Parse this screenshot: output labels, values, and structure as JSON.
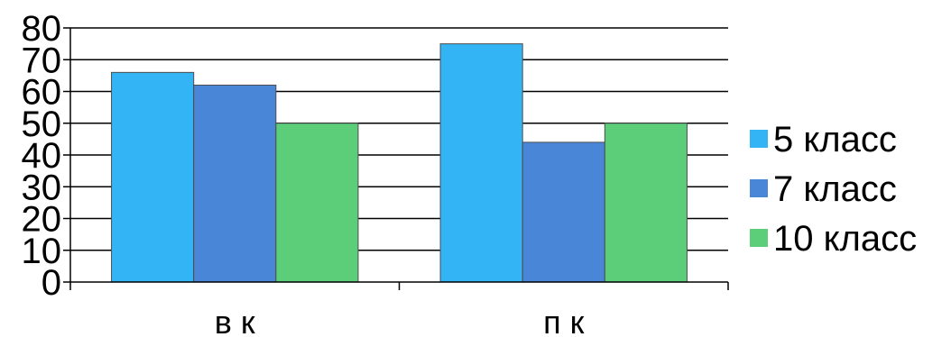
{
  "chart_data": {
    "type": "bar",
    "title": "",
    "xlabel": "",
    "ylabel": "",
    "categories": [
      "в к",
      "п к"
    ],
    "series": [
      {
        "name": "5 класс",
        "values": [
          66,
          75
        ],
        "color": "#33b5f5"
      },
      {
        "name": "7 класс",
        "values": [
          62,
          44
        ],
        "color": "#4a86d8"
      },
      {
        "name": "10 класс",
        "values": [
          50,
          50
        ],
        "color": "#5ccd78"
      }
    ],
    "ylim": [
      0,
      80
    ],
    "yticks": [
      0,
      10,
      20,
      30,
      40,
      50,
      60,
      70,
      80
    ],
    "grid": true,
    "legend_position": "right"
  }
}
